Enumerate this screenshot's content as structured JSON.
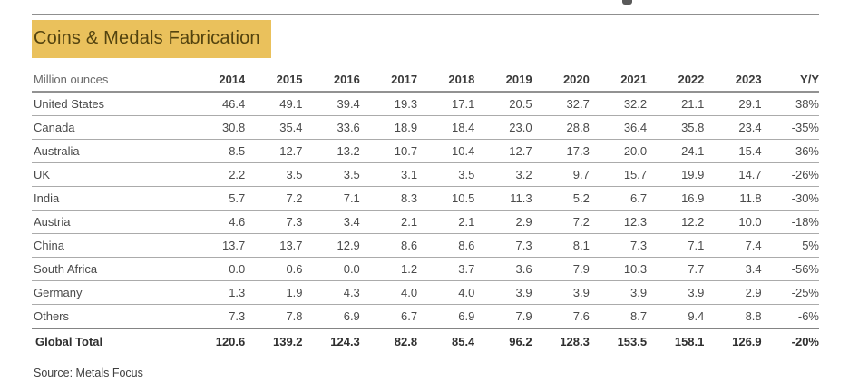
{
  "title": "Coins & Medals Fabrication",
  "unit_label": "Million ounces",
  "source": "Source: Metals Focus",
  "colors": {
    "title_highlight": "#eac15c",
    "title_text": "#53430f",
    "rule_gray": "#8f8f8f",
    "row_line_gray": "#ababab"
  },
  "table": {
    "columns": [
      "2014",
      "2015",
      "2016",
      "2017",
      "2018",
      "2019",
      "2020",
      "2021",
      "2022",
      "2023",
      "Y/Y"
    ],
    "rows": [
      {
        "label": "United States",
        "values": [
          "46.4",
          "49.1",
          "39.4",
          "19.3",
          "17.1",
          "20.5",
          "32.7",
          "32.2",
          "21.1",
          "29.1",
          "38%"
        ]
      },
      {
        "label": "Canada",
        "values": [
          "30.8",
          "35.4",
          "33.6",
          "18.9",
          "18.4",
          "23.0",
          "28.8",
          "36.4",
          "35.8",
          "23.4",
          "-35%"
        ]
      },
      {
        "label": "Australia",
        "values": [
          "8.5",
          "12.7",
          "13.2",
          "10.7",
          "10.4",
          "12.7",
          "17.3",
          "20.0",
          "24.1",
          "15.4",
          "-36%"
        ]
      },
      {
        "label": "UK",
        "values": [
          "2.2",
          "3.5",
          "3.5",
          "3.1",
          "3.5",
          "3.2",
          "9.7",
          "15.7",
          "19.9",
          "14.7",
          "-26%"
        ]
      },
      {
        "label": "India",
        "values": [
          "5.7",
          "7.2",
          "7.1",
          "8.3",
          "10.5",
          "11.3",
          "5.2",
          "6.7",
          "16.9",
          "11.8",
          "-30%"
        ]
      },
      {
        "label": "Austria",
        "values": [
          "4.6",
          "7.3",
          "3.4",
          "2.1",
          "2.1",
          "2.9",
          "7.2",
          "12.3",
          "12.2",
          "10.0",
          "-18%"
        ]
      },
      {
        "label": "China",
        "values": [
          "13.7",
          "13.7",
          "12.9",
          "8.6",
          "8.6",
          "7.3",
          "8.1",
          "7.3",
          "7.1",
          "7.4",
          "5%"
        ]
      },
      {
        "label": "South Africa",
        "values": [
          "0.0",
          "0.6",
          "0.0",
          "1.2",
          "3.7",
          "3.6",
          "7.9",
          "10.3",
          "7.7",
          "3.4",
          "-56%"
        ]
      },
      {
        "label": "Germany",
        "values": [
          "1.3",
          "1.9",
          "4.3",
          "4.0",
          "4.0",
          "3.9",
          "3.9",
          "3.9",
          "3.9",
          "2.9",
          "-25%"
        ]
      },
      {
        "label": "Others",
        "values": [
          "7.3",
          "7.8",
          "6.9",
          "6.7",
          "6.9",
          "7.9",
          "7.6",
          "8.7",
          "9.4",
          "8.8",
          "-6%"
        ]
      }
    ],
    "total_row": {
      "label": "Global Total",
      "values": [
        "120.6",
        "139.2",
        "124.3",
        "82.8",
        "85.4",
        "96.2",
        "128.3",
        "153.5",
        "158.1",
        "126.9",
        "-20%"
      ]
    }
  },
  "chart_data": {
    "type": "table",
    "title": "Coins & Medals Fabrication",
    "ylabel": "Million ounces",
    "categories": [
      "2014",
      "2015",
      "2016",
      "2017",
      "2018",
      "2019",
      "2020",
      "2021",
      "2022",
      "2023"
    ],
    "series": [
      {
        "name": "United States",
        "values": [
          46.4,
          49.1,
          39.4,
          19.3,
          17.1,
          20.5,
          32.7,
          32.2,
          21.1,
          29.1
        ],
        "yoy": "38%"
      },
      {
        "name": "Canada",
        "values": [
          30.8,
          35.4,
          33.6,
          18.9,
          18.4,
          23.0,
          28.8,
          36.4,
          35.8,
          23.4
        ],
        "yoy": "-35%"
      },
      {
        "name": "Australia",
        "values": [
          8.5,
          12.7,
          13.2,
          10.7,
          10.4,
          12.7,
          17.3,
          20.0,
          24.1,
          15.4
        ],
        "yoy": "-36%"
      },
      {
        "name": "UK",
        "values": [
          2.2,
          3.5,
          3.5,
          3.1,
          3.5,
          3.2,
          9.7,
          15.7,
          19.9,
          14.7
        ],
        "yoy": "-26%"
      },
      {
        "name": "India",
        "values": [
          5.7,
          7.2,
          7.1,
          8.3,
          10.5,
          11.3,
          5.2,
          6.7,
          16.9,
          11.8
        ],
        "yoy": "-30%"
      },
      {
        "name": "Austria",
        "values": [
          4.6,
          7.3,
          3.4,
          2.1,
          2.1,
          2.9,
          7.2,
          12.3,
          12.2,
          10.0
        ],
        "yoy": "-18%"
      },
      {
        "name": "China",
        "values": [
          13.7,
          13.7,
          12.9,
          8.6,
          8.6,
          7.3,
          8.1,
          7.3,
          7.1,
          7.4
        ],
        "yoy": "5%"
      },
      {
        "name": "South Africa",
        "values": [
          0.0,
          0.6,
          0.0,
          1.2,
          3.7,
          3.6,
          7.9,
          10.3,
          7.7,
          3.4
        ],
        "yoy": "-56%"
      },
      {
        "name": "Germany",
        "values": [
          1.3,
          1.9,
          4.3,
          4.0,
          4.0,
          3.9,
          3.9,
          3.9,
          3.9,
          2.9
        ],
        "yoy": "-25%"
      },
      {
        "name": "Others",
        "values": [
          7.3,
          7.8,
          6.9,
          6.7,
          6.9,
          7.9,
          7.6,
          8.7,
          9.4,
          8.8
        ],
        "yoy": "-6%"
      },
      {
        "name": "Global Total",
        "values": [
          120.6,
          139.2,
          124.3,
          82.8,
          85.4,
          96.2,
          128.3,
          153.5,
          158.1,
          126.9
        ],
        "yoy": "-20%"
      }
    ],
    "source": "Source: Metals Focus"
  }
}
